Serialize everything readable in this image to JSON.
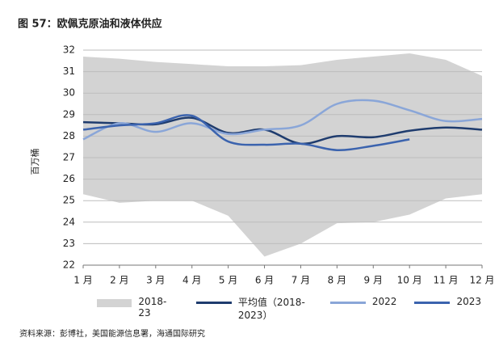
{
  "chart_data": {
    "type": "line",
    "title": "图 57：欧佩克原油和液体供应",
    "y_label": "百万桶",
    "source": "资料来源：彭博社，美国能源信息署，海通国际研究",
    "categories": [
      "1 月",
      "2 月",
      "3 月",
      "4 月",
      "5 月",
      "6 月",
      "7 月",
      "8 月",
      "9 月",
      "10 月",
      "11 月",
      "12 月"
    ],
    "band": {
      "name": "2018-23",
      "color": "#d3d3d3",
      "upper": [
        31.7,
        31.6,
        31.45,
        31.35,
        31.25,
        31.25,
        31.3,
        31.55,
        31.7,
        31.85,
        31.55,
        30.8
      ],
      "lower": [
        25.3,
        24.9,
        25.0,
        25.0,
        24.3,
        22.4,
        23.0,
        23.95,
        24.0,
        24.35,
        25.1,
        25.3
      ]
    },
    "series": [
      {
        "name": "平均值（2018-2023）",
        "color": "#1f3c6e",
        "values": [
          28.65,
          28.6,
          28.55,
          28.85,
          28.15,
          28.3,
          27.65,
          28.0,
          27.95,
          28.25,
          28.4,
          28.3
        ]
      },
      {
        "name": "2022",
        "color": "#8aa6d8",
        "values": [
          27.85,
          28.6,
          28.2,
          28.6,
          28.1,
          28.3,
          28.5,
          29.5,
          29.65,
          29.2,
          28.7,
          28.8
        ]
      },
      {
        "name": "2023",
        "color": "#3b63ae",
        "values": [
          28.3,
          28.5,
          28.6,
          28.95,
          27.75,
          27.6,
          27.65,
          27.35,
          27.55,
          27.85,
          null,
          null
        ]
      }
    ],
    "ylim": [
      22,
      32
    ],
    "yticks": [
      22,
      23,
      24,
      25,
      26,
      27,
      28,
      29,
      30,
      31,
      32
    ],
    "grid": true
  }
}
